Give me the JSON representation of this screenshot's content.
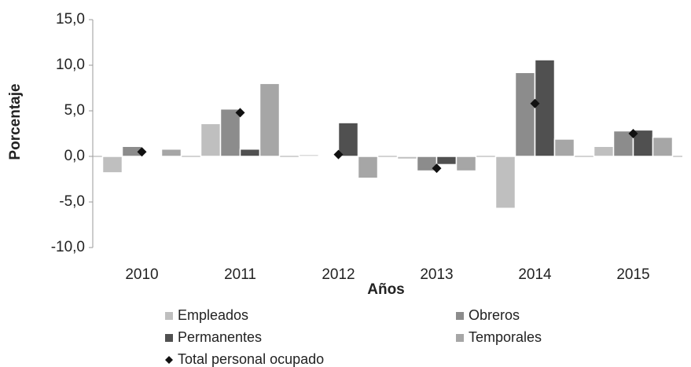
{
  "chart_data": {
    "type": "bar",
    "x_label": "Años",
    "y_label": "Porcentaje",
    "categories": [
      "2010",
      "2011",
      "2012",
      "2013",
      "2014",
      "2015"
    ],
    "series": [
      {
        "name": "Empleados",
        "color": "#bfbfbf",
        "type": "bar",
        "values": [
          -1.8,
          3.6,
          0.2,
          -0.3,
          -5.7,
          1.1
        ]
      },
      {
        "name": "Obreros",
        "color": "#8c8c8c",
        "type": "bar",
        "values": [
          1.1,
          5.2,
          0.1,
          -1.6,
          9.2,
          2.8
        ]
      },
      {
        "name": "Permanentes",
        "color": "#505050",
        "type": "bar",
        "values": [
          0.1,
          0.8,
          3.7,
          -0.9,
          10.6,
          2.9
        ]
      },
      {
        "name": "Temporales",
        "color": "#a6a6a6",
        "type": "bar",
        "values": [
          0.8,
          8.0,
          -2.4,
          -1.6,
          1.9,
          2.1
        ]
      },
      {
        "name": "Total personal ocupado",
        "color": "#111111",
        "type": "scatter",
        "marker": "diamond",
        "values": [
          0.5,
          4.8,
          0.2,
          -1.3,
          5.8,
          2.5
        ]
      }
    ],
    "ylim": [
      -10,
      15
    ],
    "yticks": [
      {
        "value": -10,
        "label": "-10,0"
      },
      {
        "value": -5,
        "label": "-5,0"
      },
      {
        "value": 0,
        "label": "0,0"
      },
      {
        "value": 5,
        "label": "5,0"
      },
      {
        "value": 10,
        "label": "10,0"
      },
      {
        "value": 15,
        "label": "15,0"
      }
    ],
    "grid": false,
    "legend": "bottom"
  }
}
